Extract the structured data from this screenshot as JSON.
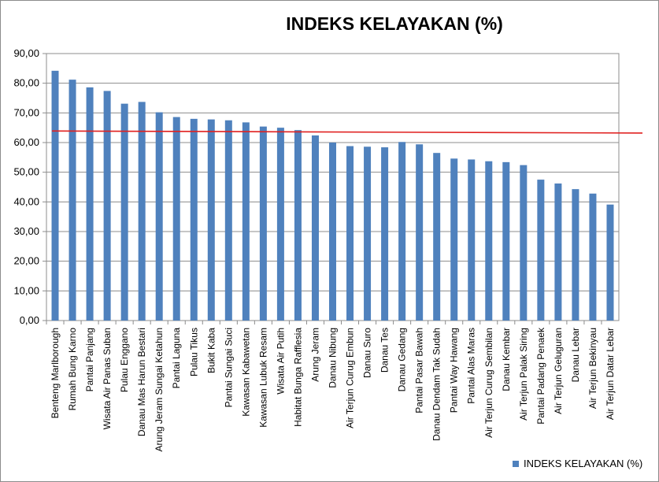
{
  "colors": {
    "bar": "#4f81bd",
    "reference_line": "#e0201f",
    "grid": "#8c8c8c",
    "axis": "#8c8c8c"
  },
  "chart_data": {
    "type": "bar",
    "title": "INDEKS KELAYAKAN (%)",
    "xlabel": "",
    "ylabel": "",
    "ylim": [
      0,
      90
    ],
    "ytick_labels": [
      "0,00",
      "10,00",
      "20,00",
      "30,00",
      "40,00",
      "50,00",
      "60,00",
      "70,00",
      "80,00",
      "90,00"
    ],
    "grid": true,
    "legend_position": "bottom-right",
    "categories": [
      "Benteng Marlborough",
      "Rumah Bung Karno",
      "Pantai Panjang",
      "Wisata Air Panas Suban",
      "Pulau Enggano",
      "Danau Mas Harun Bestari",
      "Arung Jeram Sungai Ketahun",
      "Pantai Laguna",
      "Pulau Tikus",
      "Bukit Kaba",
      "Pantai Sungai Suci",
      "Kawasan Kabawetan",
      "Kawasan Lubuk Resam",
      "Wisata Air Putih",
      "Habitat Bunga Rafflesia",
      "Arung Jeram",
      "Danau Nibung",
      "Air Terjun Curug Embun",
      "Danau Suro",
      "Danau Tes",
      "Danau Gedang",
      "Pantai Pasar Bawah",
      "Danau Dendam Tak Sudah",
      "Pantai Way Hawang",
      "Pantai Alas Maras",
      "Air Terjun Curug Sembilan",
      "Danau Kembar",
      "Air Terjun Palak Siring",
      "Pantai Padang Penaek",
      "Air Terjun Geluguran",
      "Danau Lebar",
      "Air Terjun Bekinyau",
      "Air Terjun Datar Lebar"
    ],
    "series": [
      {
        "name": "INDEKS KELAYAKAN (%)",
        "values": [
          84.2,
          81.2,
          78.6,
          77.4,
          73.1,
          73.7,
          70.2,
          68.6,
          68.0,
          67.8,
          67.5,
          66.8,
          65.4,
          65.0,
          64.2,
          62.4,
          60.0,
          58.8,
          58.6,
          58.4,
          60.2,
          59.4,
          56.5,
          54.6,
          54.3,
          53.7,
          53.4,
          52.4,
          47.5,
          46.2,
          44.3,
          42.8,
          39.1
        ]
      }
    ],
    "reference_line": {
      "type": "line",
      "from": 63.9,
      "to": 63.2
    }
  }
}
